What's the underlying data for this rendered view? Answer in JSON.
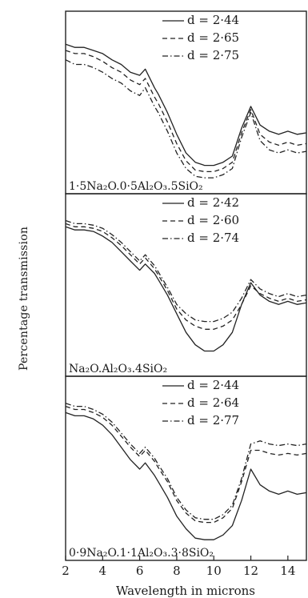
{
  "figure": {
    "ylabel": "Percentage transmission",
    "xlabel": "Wavelength in microns"
  },
  "chart_data": [
    {
      "type": "line",
      "title": "1·5Na₂O.0·5Al₂O₃.5SiO₂",
      "xlabel": "Wavelength in microns",
      "ylabel": "Percentage transmission",
      "xlim": [
        2,
        15
      ],
      "xticks": [
        "2",
        "4",
        "6",
        "8",
        "10",
        "12",
        "14"
      ],
      "legend_position": "top-right",
      "series": [
        {
          "name": "d = 2·44",
          "style": "solid",
          "x": [
            2,
            2.5,
            3,
            3.5,
            4,
            4.5,
            5,
            5.5,
            6,
            6.3,
            6.8,
            7,
            7.5,
            8,
            8.5,
            9,
            9.5,
            10,
            10.5,
            11,
            11.5,
            12,
            12.5,
            13,
            13.5,
            14,
            14.5,
            15
          ],
          "y": [
            88,
            86,
            86,
            84,
            82,
            78,
            75,
            70,
            68,
            72,
            60,
            56,
            44,
            30,
            18,
            12,
            10,
            10,
            12,
            16,
            34,
            48,
            36,
            32,
            30,
            32,
            30,
            31
          ]
        },
        {
          "name": "d = 2·65",
          "style": "dashed",
          "x": [
            2,
            2.5,
            3,
            3.5,
            4,
            4.5,
            5,
            5.5,
            6,
            6.3,
            6.8,
            7,
            7.5,
            8,
            8.5,
            9,
            9.5,
            10,
            10.5,
            11,
            11.5,
            12,
            12.5,
            13,
            13.5,
            14,
            14.5,
            15
          ],
          "y": [
            84,
            82,
            82,
            80,
            77,
            73,
            70,
            65,
            62,
            66,
            54,
            50,
            38,
            24,
            13,
            7,
            6,
            6,
            8,
            12,
            31,
            46,
            30,
            25,
            23,
            25,
            23,
            24
          ]
        },
        {
          "name": "d = 2·75",
          "style": "dash-dot",
          "x": [
            2,
            2.5,
            3,
            3.5,
            4,
            4.5,
            5,
            5.5,
            6,
            6.3,
            6.8,
            7,
            7.5,
            8,
            8.5,
            9,
            9.5,
            10,
            10.5,
            11,
            11.5,
            12,
            12.5,
            13,
            13.5,
            14,
            14.5,
            15
          ],
          "y": [
            78,
            75,
            75,
            73,
            70,
            66,
            63,
            58,
            55,
            60,
            48,
            44,
            32,
            18,
            8,
            3,
            2,
            2,
            4,
            8,
            28,
            44,
            26,
            20,
            18,
            20,
            18,
            19
          ]
        }
      ]
    },
    {
      "type": "line",
      "title": "Na₂O.Al₂O₃.4SiO₂",
      "xlabel": "Wavelength in microns",
      "ylabel": "Percentage transmission",
      "xlim": [
        2,
        15
      ],
      "xticks": [
        "2",
        "4",
        "6",
        "8",
        "10",
        "12",
        "14"
      ],
      "legend_position": "top-right",
      "series": [
        {
          "name": "d = 2·42",
          "style": "solid",
          "x": [
            2,
            2.5,
            3,
            3.5,
            4,
            4.5,
            5,
            5.5,
            6,
            6.3,
            6.8,
            7,
            7.5,
            8,
            8.5,
            9,
            9.5,
            10,
            10.5,
            11,
            11.5,
            12,
            12.5,
            13,
            13.5,
            14,
            14.5,
            15
          ],
          "y": [
            88,
            86,
            86,
            85,
            82,
            78,
            72,
            66,
            60,
            64,
            58,
            54,
            44,
            32,
            20,
            12,
            8,
            8,
            12,
            20,
            38,
            52,
            44,
            40,
            38,
            40,
            38,
            39
          ]
        },
        {
          "name": "d = 2·60",
          "style": "dashed",
          "x": [
            2,
            2.5,
            3,
            3.5,
            4,
            4.5,
            5,
            5.5,
            6,
            6.3,
            6.8,
            7,
            7.5,
            8,
            8.5,
            9,
            9.5,
            10,
            10.5,
            11,
            11.5,
            12,
            12.5,
            13,
            13.5,
            14,
            14.5,
            15
          ],
          "y": [
            90,
            88,
            88,
            87,
            85,
            81,
            76,
            70,
            64,
            68,
            61,
            57,
            47,
            35,
            28,
            24,
            22,
            22,
            24,
            28,
            38,
            50,
            45,
            42,
            40,
            42,
            40,
            41
          ]
        },
        {
          "name": "d = 2·74",
          "style": "dash-dot",
          "x": [
            2,
            2.5,
            3,
            3.5,
            4,
            4.5,
            5,
            5.5,
            6,
            6.3,
            6.8,
            7,
            7.5,
            8,
            8.5,
            9,
            9.5,
            10,
            10.5,
            11,
            11.5,
            12,
            12.5,
            13,
            13.5,
            14,
            14.5,
            15
          ],
          "y": [
            92,
            90,
            90,
            89,
            87,
            83,
            78,
            72,
            66,
            70,
            63,
            59,
            49,
            38,
            32,
            28,
            27,
            27,
            29,
            33,
            42,
            54,
            48,
            45,
            43,
            45,
            43,
            44
          ]
        }
      ]
    },
    {
      "type": "line",
      "title": "0·9Na₂O.1·1Al₂O₃.3·8SiO₂",
      "xlabel": "Wavelength in microns",
      "ylabel": "Percentage transmission",
      "xlim": [
        2,
        15
      ],
      "xticks": [
        "2",
        "4",
        "6",
        "8",
        "10",
        "12",
        "14"
      ],
      "legend_position": "top-right",
      "series": [
        {
          "name": "d = 2·44",
          "style": "solid",
          "x": [
            2,
            2.5,
            3,
            3.5,
            4,
            4.5,
            5,
            5.5,
            6,
            6.3,
            6.8,
            7,
            7.5,
            8,
            8.5,
            9,
            9.5,
            10,
            10.5,
            11,
            11.5,
            12,
            12.5,
            13,
            13.5,
            14,
            14.5,
            15
          ],
          "y": [
            86,
            84,
            84,
            82,
            78,
            72,
            64,
            56,
            50,
            54,
            46,
            42,
            32,
            20,
            12,
            6,
            5,
            5,
            8,
            14,
            30,
            50,
            40,
            36,
            34,
            36,
            34,
            35
          ]
        },
        {
          "name": "d = 2·64",
          "style": "dashed",
          "x": [
            2,
            2.5,
            3,
            3.5,
            4,
            4.5,
            5,
            5.5,
            6,
            6.3,
            6.8,
            7,
            7.5,
            8,
            8.5,
            9,
            9.5,
            10,
            10.5,
            11,
            11.5,
            12,
            12.5,
            13,
            13.5,
            14,
            14.5,
            15
          ],
          "y": [
            90,
            88,
            88,
            86,
            83,
            78,
            71,
            64,
            58,
            62,
            55,
            51,
            42,
            30,
            22,
            17,
            16,
            16,
            19,
            25,
            42,
            62,
            62,
            60,
            59,
            60,
            59,
            60
          ]
        },
        {
          "name": "d = 2·77",
          "style": "dash-dot",
          "x": [
            2,
            2.5,
            3,
            3.5,
            4,
            4.5,
            5,
            5.5,
            6,
            6.3,
            6.8,
            7,
            7.5,
            8,
            8.5,
            9,
            9.5,
            10,
            10.5,
            11,
            11.5,
            12,
            12.5,
            13,
            13.5,
            14,
            14.5,
            15
          ],
          "y": [
            92,
            90,
            90,
            88,
            85,
            80,
            73,
            66,
            60,
            64,
            57,
            53,
            44,
            32,
            24,
            19,
            18,
            18,
            21,
            27,
            44,
            66,
            68,
            66,
            65,
            66,
            65,
            66
          ]
        }
      ]
    }
  ]
}
